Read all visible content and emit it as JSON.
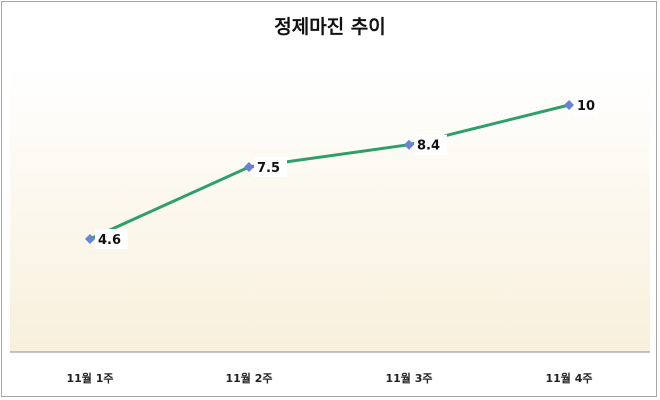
{
  "chart_data": {
    "type": "line",
    "title": "정제마진 추이",
    "categories": [
      "11월 1주",
      "11월 2주",
      "11월 3주",
      "11월 4주"
    ],
    "series": [
      {
        "name": "정제마진",
        "values": [
          4.6,
          7.5,
          8.4,
          10
        ],
        "color": "#2e9e6a",
        "marker_color": "#6684cf",
        "marker": "diamond"
      }
    ],
    "data_labels": [
      "4.6",
      "7.5",
      "8.4",
      "10"
    ],
    "xlabel": "",
    "ylabel": "",
    "grid": false,
    "legend": "none",
    "plot_background": "gradient #ffffff → #f8f0dc"
  }
}
